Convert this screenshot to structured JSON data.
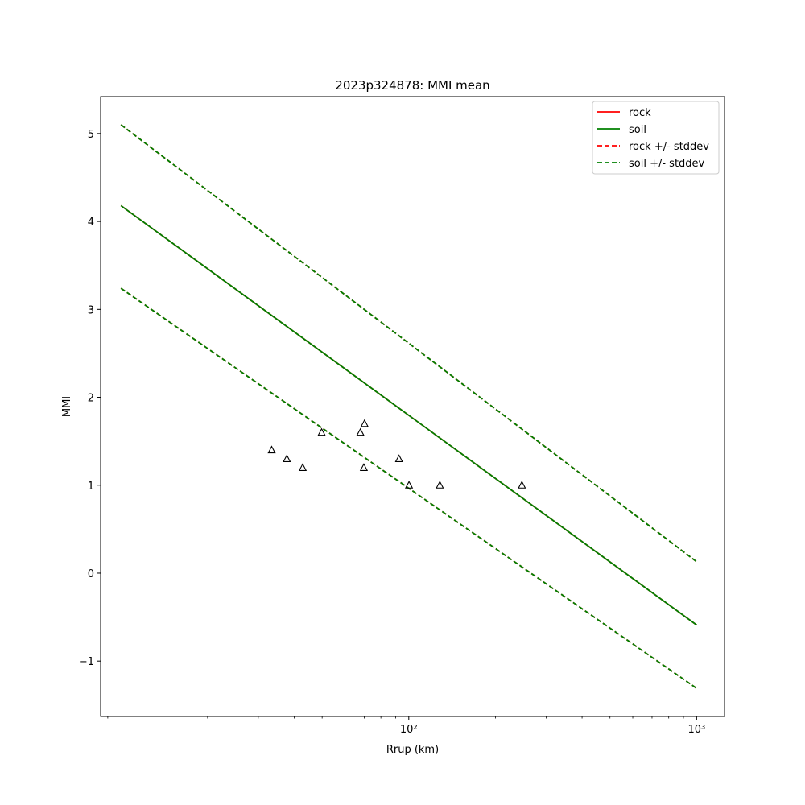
{
  "chart_data": {
    "type": "line",
    "title": "2023p324878: MMI mean",
    "xlabel": "Rrup (km)",
    "ylabel": "MMI",
    "xscale": "log",
    "xlim": [
      8.5,
      1250
    ],
    "ylim": [
      -1.63,
      5.42
    ],
    "xticks_major": [
      100,
      1000
    ],
    "xtick_labels": [
      "10²",
      "10³"
    ],
    "yticks": [
      -1,
      0,
      1,
      2,
      3,
      4,
      5
    ],
    "ytick_labels": [
      "−1",
      "0",
      "1",
      "2",
      "3",
      "4",
      "5"
    ],
    "grid": false,
    "legend_position": "top-right",
    "series": [
      {
        "name": "rock",
        "style": "solid",
        "color": "#ff0000",
        "x": [
          10,
          1000
        ],
        "y": [
          4.18,
          -0.59
        ]
      },
      {
        "name": "soil",
        "style": "solid",
        "color": "#008000",
        "x": [
          10,
          1000
        ],
        "y": [
          4.18,
          -0.59
        ]
      },
      {
        "name": "rock +/- stddev",
        "style": "dashed",
        "color": "#ff0000",
        "x": [
          10,
          1000
        ],
        "y_upper": [
          5.1,
          0.13
        ],
        "y_lower": [
          3.24,
          -1.31
        ]
      },
      {
        "name": "soil +/- stddev",
        "style": "dashed",
        "color": "#008000",
        "x": [
          10,
          1000
        ],
        "y_upper": [
          5.1,
          0.13
        ],
        "y_lower": [
          3.24,
          -1.31
        ]
      }
    ],
    "observations": {
      "marker": "triangle",
      "points": [
        {
          "x": 33.4,
          "y": 1.4
        },
        {
          "x": 37.7,
          "y": 1.3
        },
        {
          "x": 42.8,
          "y": 1.2
        },
        {
          "x": 49.8,
          "y": 1.6
        },
        {
          "x": 67.9,
          "y": 1.6
        },
        {
          "x": 70.2,
          "y": 1.7
        },
        {
          "x": 69.8,
          "y": 1.2
        },
        {
          "x": 92.5,
          "y": 1.3
        },
        {
          "x": 100.2,
          "y": 1.0
        },
        {
          "x": 128.2,
          "y": 1.0
        },
        {
          "x": 247.2,
          "y": 1.0
        }
      ]
    }
  }
}
